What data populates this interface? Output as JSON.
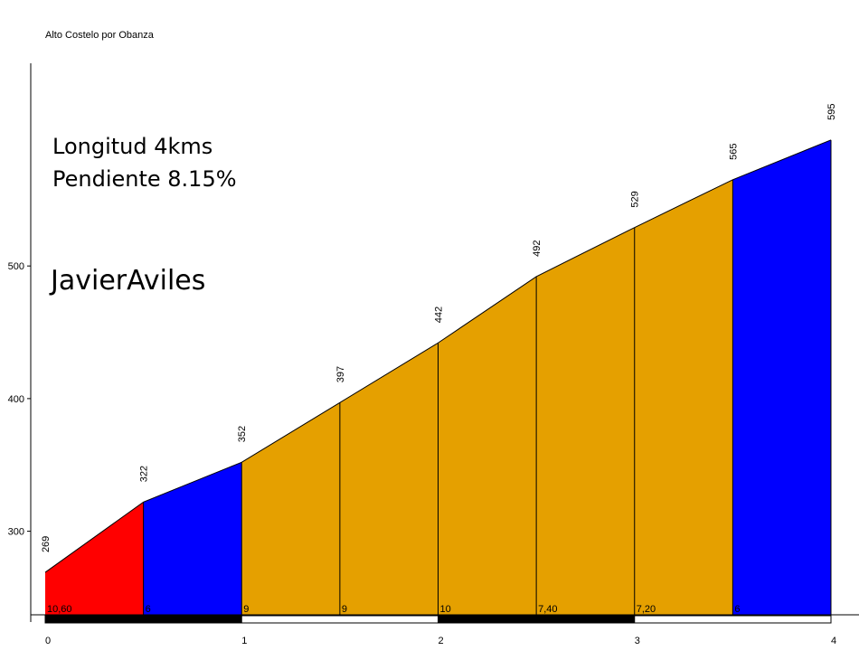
{
  "chart_data": {
    "type": "area",
    "title": "Alto Costelo por Obanza",
    "x": [
      0,
      0.5,
      1,
      1.5,
      2,
      2.5,
      3,
      3.5,
      4
    ],
    "elevations": [
      269,
      322,
      352,
      397,
      442,
      492,
      529,
      565,
      595
    ],
    "elevation_labels": [
      "269",
      "322",
      "352",
      "397",
      "442",
      "492",
      "529",
      "565",
      "595"
    ],
    "segments": [
      {
        "from": 0,
        "to": 0.5,
        "grade_label": "10,60",
        "color": "#ff0000"
      },
      {
        "from": 0.5,
        "to": 1,
        "grade_label": "6",
        "color": "#0000ff"
      },
      {
        "from": 1,
        "to": 1.5,
        "grade_label": "9",
        "color": "#e5a000"
      },
      {
        "from": 1.5,
        "to": 2,
        "grade_label": "9",
        "color": "#e5a000"
      },
      {
        "from": 2,
        "to": 2.5,
        "grade_label": "10",
        "color": "#e5a000"
      },
      {
        "from": 2.5,
        "to": 3,
        "grade_label": "7,40",
        "color": "#e5a000"
      },
      {
        "from": 3,
        "to": 3.5,
        "grade_label": "7,20",
        "color": "#e5a000"
      },
      {
        "from": 3.5,
        "to": 4,
        "grade_label": "6",
        "color": "#0000ff"
      }
    ],
    "x_ticks": [
      0,
      1,
      2,
      3,
      4
    ],
    "x_tick_labels": [
      "0",
      "1",
      "2",
      "3",
      "4"
    ],
    "y_ticks": [
      300,
      400,
      500
    ],
    "y_tick_labels": [
      "300",
      "400",
      "500"
    ],
    "xlim": [
      0,
      4
    ],
    "ylim": [
      237,
      655
    ],
    "grid": false,
    "annotations": {
      "line1": "Longitud 4kms",
      "line2": "Pendiente 8.15%",
      "author": "JavierAviles"
    }
  }
}
